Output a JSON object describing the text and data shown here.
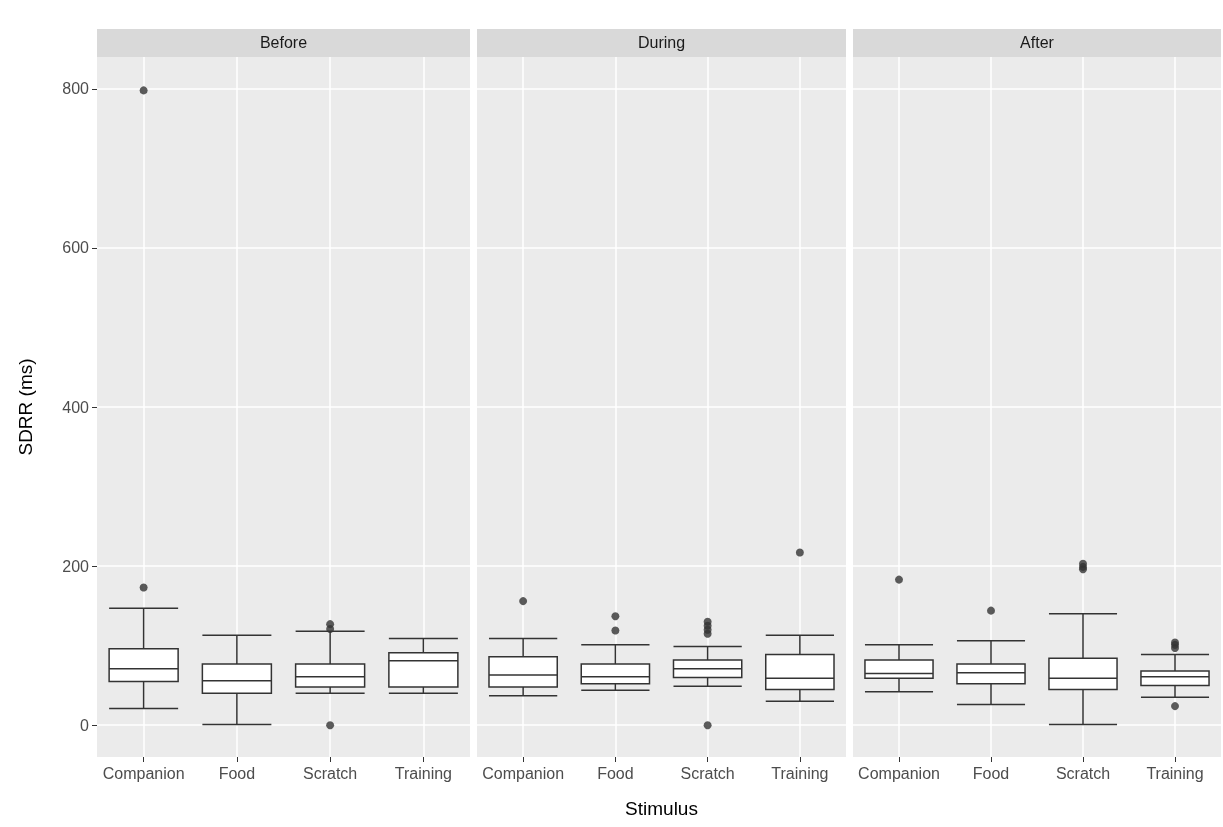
{
  "chart_data": [
    {
      "type": "box",
      "title": "Before",
      "ylabel": "SDRR (ms)",
      "categories": [
        "Companion",
        "Food",
        "Scratch",
        "Training"
      ],
      "ylim": [
        -40,
        840
      ],
      "yticks": [
        0,
        200,
        400,
        600,
        800
      ],
      "grid": true,
      "boxes": [
        {
          "low": 21,
          "q1": 55,
          "median": 71,
          "q3": 96,
          "high": 147,
          "outliers": [
            173,
            798
          ]
        },
        {
          "low": 1,
          "q1": 40,
          "median": 56,
          "q3": 77,
          "high": 113
        },
        {
          "low": 40,
          "q1": 48,
          "median": 61,
          "q3": 77,
          "high": 118,
          "outliers": [
            121,
            127,
            0
          ]
        },
        {
          "low": 40,
          "q1": 48,
          "median": 81,
          "q3": 91,
          "high": 109
        }
      ]
    },
    {
      "type": "box",
      "title": "During",
      "xlabel": "Stimulus",
      "categories": [
        "Companion",
        "Food",
        "Scratch",
        "Training"
      ],
      "ylim": [
        -40,
        840
      ],
      "yticks": [
        0,
        200,
        400,
        600,
        800
      ],
      "grid": true,
      "tick_labels": "x",
      "boxes": [
        {
          "low": 37,
          "q1": 48,
          "median": 63,
          "q3": 86,
          "high": 109,
          "outliers": [
            156
          ]
        },
        {
          "low": 44,
          "q1": 52,
          "median": 61,
          "q3": 77,
          "high": 101,
          "outliers": [
            119,
            137
          ]
        },
        {
          "low": 49,
          "q1": 60,
          "median": 71,
          "q3": 82,
          "high": 99,
          "outliers": [
            115,
            120,
            125,
            130,
            0
          ]
        },
        {
          "low": 30,
          "q1": 45,
          "median": 59,
          "q3": 89,
          "high": 113,
          "outliers": [
            217
          ]
        }
      ]
    },
    {
      "type": "box",
      "title": "After",
      "categories": [
        "Companion",
        "Food",
        "Scratch",
        "Training"
      ],
      "ylim": [
        -40,
        840
      ],
      "yticks": [
        0,
        200,
        400,
        600,
        800
      ],
      "grid": true,
      "tick_labels": "x",
      "boxes": [
        {
          "low": 42,
          "q1": 59,
          "median": 65,
          "q3": 82,
          "high": 101,
          "outliers": [
            183
          ]
        },
        {
          "low": 26,
          "q1": 52,
          "median": 66,
          "q3": 77,
          "high": 106,
          "outliers": [
            144
          ]
        },
        {
          "low": 1,
          "q1": 45,
          "median": 59,
          "q3": 84,
          "high": 140,
          "outliers": [
            196,
            199,
            203
          ]
        },
        {
          "low": 35,
          "q1": 50,
          "median": 61,
          "q3": 68,
          "high": 89,
          "outliers": [
            97,
            101,
            104,
            24
          ]
        }
      ]
    }
  ]
}
